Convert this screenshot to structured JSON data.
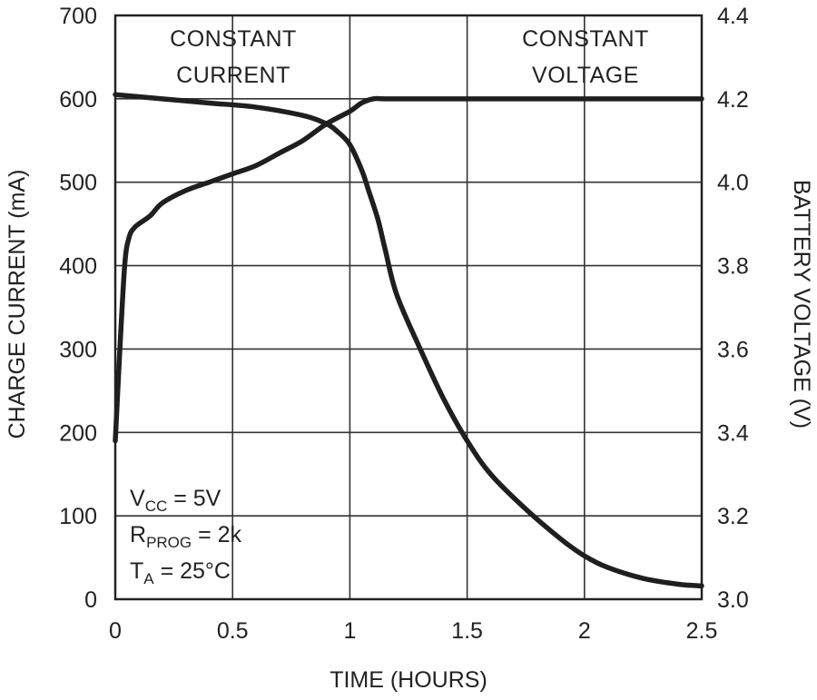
{
  "chart_data": {
    "type": "line",
    "xlabel": "TIME (HOURS)",
    "ylabel_left": "CHARGE CURRENT (mA)",
    "ylabel_right": "BATTERY VOLTAGE (V)",
    "xlim": [
      0,
      2.5
    ],
    "ylim_left": [
      0,
      700
    ],
    "ylim_right": [
      3.0,
      4.4
    ],
    "x_ticks": [
      "0",
      "0.5",
      "1",
      "1.5",
      "2",
      "2.5"
    ],
    "y_ticks_left": [
      "0",
      "100",
      "200",
      "300",
      "400",
      "500",
      "600",
      "700"
    ],
    "y_ticks_right": [
      "3.0",
      "3.2",
      "3.4",
      "3.6",
      "3.8",
      "4.0",
      "4.2",
      "4.4"
    ],
    "grid": true,
    "regions": [
      {
        "line1": "CONSTANT",
        "line2": "CURRENT"
      },
      {
        "line1": "CONSTANT",
        "line2": "VOLTAGE"
      }
    ],
    "conditions": [
      {
        "main": "V",
        "sub": "CC",
        "rest": " = 5V"
      },
      {
        "main": "R",
        "sub": "PROG",
        "rest": " = 2k"
      },
      {
        "main": "T",
        "sub": "A",
        "rest": " = 25°C"
      }
    ],
    "series": [
      {
        "axis": "right",
        "unit": "V",
        "x": [
          0,
          0.015,
          0.04,
          0.06,
          0.08,
          0.1,
          0.15,
          0.2,
          0.3,
          0.4,
          0.5,
          0.6,
          0.7,
          0.8,
          0.9,
          1.0,
          1.05,
          1.1,
          1.15,
          1.3,
          1.5,
          1.75,
          2.0,
          2.25,
          2.5
        ],
        "values": [
          3.38,
          3.55,
          3.8,
          3.87,
          3.89,
          3.9,
          3.92,
          3.95,
          3.98,
          4.0,
          4.02,
          4.04,
          4.07,
          4.1,
          4.14,
          4.17,
          4.19,
          4.2,
          4.2,
          4.2,
          4.2,
          4.2,
          4.2,
          4.2,
          4.2
        ]
      },
      {
        "axis": "left",
        "unit": "mA",
        "x": [
          0,
          0.2,
          0.4,
          0.6,
          0.8,
          0.9,
          0.95,
          1.0,
          1.05,
          1.08,
          1.12,
          1.15,
          1.2,
          1.3,
          1.4,
          1.5,
          1.6,
          1.75,
          1.9,
          2.0,
          2.1,
          2.25,
          2.4,
          2.5
        ],
        "values": [
          605,
          600,
          595,
          590,
          580,
          570,
          560,
          545,
          515,
          490,
          455,
          420,
          365,
          300,
          240,
          190,
          150,
          108,
          72,
          52,
          38,
          25,
          18,
          16
        ]
      }
    ]
  }
}
